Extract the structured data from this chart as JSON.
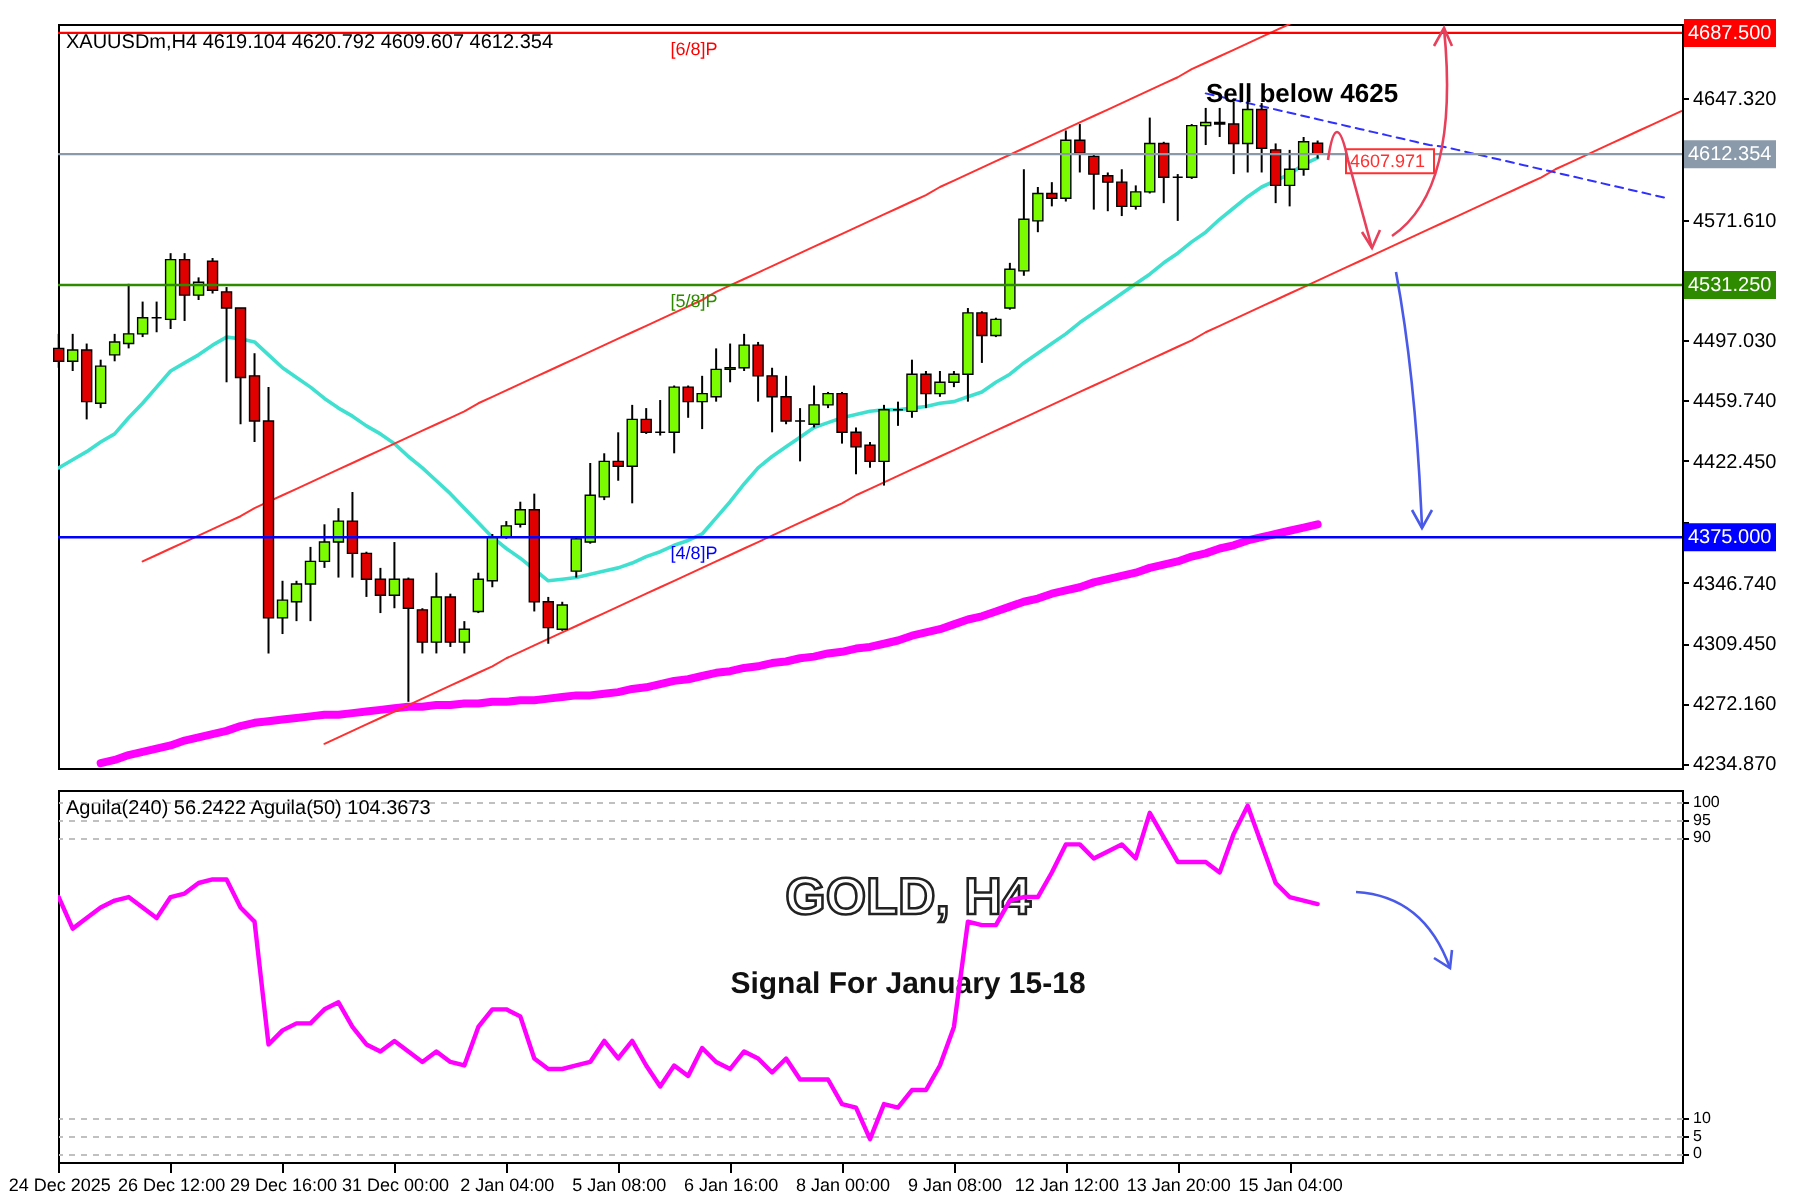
{
  "chart_data": [
    {
      "type": "candlestick",
      "title": "XAUUSDm,H4 4619.104 4620.792 4609.607 4612.354",
      "categories": [
        null,
        null,
        null,
        null,
        null,
        null,
        null,
        null,
        null,
        null,
        null,
        null,
        null,
        null,
        null,
        null,
        null,
        null,
        null,
        null,
        null,
        null,
        null,
        null,
        null,
        null,
        null,
        null,
        null,
        null,
        null,
        null,
        null,
        null,
        null,
        null,
        null,
        null,
        null,
        null,
        null,
        null,
        null,
        null,
        null,
        null,
        null,
        null,
        null,
        null,
        null,
        null,
        null,
        null,
        null,
        null,
        null,
        null,
        null,
        null,
        null,
        null,
        null,
        null,
        null,
        null,
        null,
        null,
        null,
        null,
        null,
        null,
        null,
        null,
        null,
        null,
        null,
        null,
        null,
        null,
        null,
        null,
        null,
        null,
        null,
        null,
        null,
        null,
        null,
        null,
        null,
        null,
        null,
        null,
        null,
        null,
        null,
        null,
        null,
        null,
        null,
        null,
        null,
        null,
        null,
        null,
        null,
        null,
        null,
        null,
        null,
        null,
        null,
        null,
        null,
        null,
        null
      ],
      "ohlc": [
        [
          4492,
          4501,
          4480,
          4484
        ],
        [
          4484,
          4501,
          4478,
          4491
        ],
        [
          4491,
          4495,
          4448,
          4459
        ],
        [
          4458,
          4485,
          4455,
          4481
        ],
        [
          4488,
          4501,
          4484,
          4496
        ],
        [
          4495,
          4532,
          4492,
          4501
        ],
        [
          4501,
          4521,
          4499,
          4511
        ],
        [
          4511,
          4521,
          4502,
          4511
        ],
        [
          4510,
          4551,
          4504,
          4547
        ],
        [
          4547,
          4551,
          4509,
          4525
        ],
        [
          4525,
          4536,
          4522,
          4533
        ],
        [
          4546,
          4548,
          4526,
          4528
        ],
        [
          4527,
          4530,
          4471,
          4517
        ],
        [
          4517,
          4517,
          4445,
          4474
        ],
        [
          4475,
          4489,
          4434,
          4447
        ],
        [
          4447,
          4468,
          4303,
          4325
        ],
        [
          4325,
          4348,
          4315,
          4336
        ],
        [
          4335,
          4348,
          4323,
          4346
        ],
        [
          4346,
          4369,
          4323,
          4360
        ],
        [
          4360,
          4383,
          4356,
          4372
        ],
        [
          4372,
          4393,
          4350,
          4385
        ],
        [
          4385,
          4403,
          4350,
          4365
        ],
        [
          4365,
          4366,
          4338,
          4349
        ],
        [
          4349,
          4356,
          4328,
          4339
        ],
        [
          4339,
          4372,
          4331,
          4349
        ],
        [
          4349,
          4350,
          4273,
          4331
        ],
        [
          4330,
          4331,
          4303,
          4310
        ],
        [
          4310,
          4353,
          4303,
          4338
        ],
        [
          4338,
          4340,
          4307,
          4310
        ],
        [
          4310,
          4323,
          4303,
          4318
        ],
        [
          4329,
          4353,
          4328,
          4349
        ],
        [
          4348,
          4377,
          4344,
          4375
        ],
        [
          4375,
          4385,
          4374,
          4382
        ],
        [
          4383,
          4397,
          4381,
          4392
        ],
        [
          4392,
          4402,
          4329,
          4335
        ],
        [
          4335,
          4338,
          4309,
          4319
        ],
        [
          4318,
          4335,
          4317,
          4333
        ],
        [
          4354,
          4375,
          4350,
          4374
        ],
        [
          4372,
          4421,
          4371,
          4401
        ],
        [
          4400,
          4427,
          4398,
          4422
        ],
        [
          4422,
          4440,
          4410,
          4419
        ],
        [
          4419,
          4457,
          4396,
          4448
        ],
        [
          4448,
          4455,
          4439,
          4440
        ],
        [
          4440,
          4460,
          4438,
          4440
        ],
        [
          4440,
          4469,
          4427,
          4468
        ],
        [
          4468,
          4469,
          4449,
          4459
        ],
        [
          4459,
          4475,
          4442,
          4464
        ],
        [
          4462,
          4492,
          4459,
          4479
        ],
        [
          4479,
          4495,
          4471,
          4480
        ],
        [
          4480,
          4501,
          4478,
          4494
        ],
        [
          4494,
          4496,
          4459,
          4475
        ],
        [
          4475,
          4480,
          4440,
          4462
        ],
        [
          4462,
          4475,
          4445,
          4447
        ],
        [
          4447,
          4455,
          4422,
          4447
        ],
        [
          4445,
          4469,
          4443,
          4457
        ],
        [
          4457,
          4465,
          4455,
          4464
        ],
        [
          4464,
          4465,
          4433,
          4440
        ],
        [
          4440,
          4443,
          4414,
          4431
        ],
        [
          4432,
          4434,
          4418,
          4422
        ],
        [
          4422,
          4457,
          4407,
          4454
        ],
        [
          4454,
          4459,
          4444,
          4454
        ],
        [
          4453,
          4485,
          4449,
          4476
        ],
        [
          4476,
          4478,
          4455,
          4464
        ],
        [
          4464,
          4478,
          4462,
          4471
        ],
        [
          4471,
          4478,
          4468,
          4476
        ],
        [
          4476,
          4517,
          4459,
          4514
        ],
        [
          4514,
          4515,
          4483,
          4500
        ],
        [
          4500,
          4511,
          4499,
          4510
        ],
        [
          4517,
          4545,
          4516,
          4541
        ],
        [
          4540,
          4603,
          4537,
          4572
        ],
        [
          4571,
          4592,
          4564,
          4588
        ],
        [
          4588,
          4595,
          4580,
          4585
        ],
        [
          4585,
          4627,
          4583,
          4621
        ],
        [
          4621,
          4631,
          4601,
          4613
        ],
        [
          4611,
          4613,
          4578,
          4600
        ],
        [
          4599,
          4601,
          4577,
          4595
        ],
        [
          4595,
          4603,
          4574,
          4580
        ],
        [
          4580,
          4593,
          4578,
          4589
        ],
        [
          4589,
          4635,
          4588,
          4619
        ],
        [
          4619,
          4620,
          4582,
          4598
        ],
        [
          4598,
          4600,
          4571,
          4598
        ],
        [
          4598,
          4631,
          4597,
          4630
        ],
        [
          4630,
          4641,
          4618,
          4632
        ],
        [
          4632,
          4641,
          4623,
          4631
        ],
        [
          4631,
          4645,
          4600,
          4619
        ],
        [
          4619,
          4645,
          4601,
          4640
        ],
        [
          4640,
          4644,
          4601,
          4616
        ],
        [
          4615,
          4619,
          4582,
          4593
        ],
        [
          4593,
          4615,
          4580,
          4603
        ],
        [
          4603,
          4623,
          4599,
          4620
        ],
        [
          4619.104,
          4620.792,
          4609.607,
          4612.354
        ],
        null,
        null,
        null,
        null,
        null,
        null,
        null,
        null,
        null,
        null,
        null,
        null,
        null,
        null,
        null,
        null,
        null,
        null,
        null,
        null,
        null,
        null,
        null,
        null,
        null,
        null
      ],
      "series": [
        {
          "type": "line",
          "color": "#40e0d0",
          "values": [
            4418,
            4423,
            4428,
            4434,
            4439,
            4449,
            4458,
            4468,
            4478,
            4483,
            4488,
            4494,
            4499,
            4498,
            4496,
            4488,
            4480,
            4474,
            4468,
            4461,
            4455,
            4450,
            4444,
            4439,
            4433,
            4425,
            4418,
            4410,
            4402,
            4393,
            4384,
            4375,
            4368,
            4362,
            4355,
            4348,
            4349,
            4350,
            4352,
            4354,
            4356,
            4359,
            4363,
            4366,
            4370,
            4373,
            4377,
            4387,
            4397,
            4408,
            4418,
            4425,
            4431,
            4437,
            4443,
            4446,
            4449,
            4451,
            4453,
            4454,
            4454,
            4455,
            4456,
            4458,
            4459,
            4462,
            4465,
            4471,
            4476,
            4483,
            4489,
            4495,
            4501,
            4508,
            4514,
            4520,
            4526,
            4532,
            4538,
            4545,
            4551,
            4558,
            4564,
            4572,
            4579,
            4586,
            4592,
            4596,
            4600,
            4606,
            4610,
            null,
            null,
            null,
            null,
            null,
            null,
            null,
            null,
            null,
            null,
            null,
            null,
            null,
            null,
            null,
            null,
            null,
            null,
            null,
            null,
            null,
            null,
            null,
            null,
            null,
            null
          ]
        },
        {
          "type": "line",
          "color": "#ff00ff",
          "values": [
            null,
            null,
            null,
            4235,
            4237,
            4240,
            4242,
            4244,
            4246,
            4249,
            4251,
            4253,
            4255,
            4258,
            4260,
            4261,
            4262,
            4263,
            4264,
            4265,
            4265,
            4266,
            4267,
            4268,
            4269,
            4270,
            4270,
            4271,
            4271,
            4272,
            4272,
            4273,
            4273,
            4274,
            4274,
            4275,
            4276,
            4277,
            4277,
            4278,
            4279,
            4281,
            4282,
            4284,
            4286,
            4287,
            4289,
            4291,
            4292,
            4294,
            4295,
            4297,
            4298,
            4300,
            4301,
            4303,
            4304,
            4306,
            4307,
            4309,
            4311,
            4314,
            4316,
            4318,
            4321,
            4324,
            4326,
            4329,
            4332,
            4335,
            4337,
            4340,
            4342,
            4344,
            4347,
            4349,
            4351,
            4353,
            4356,
            4358,
            4360,
            4363,
            4365,
            4368,
            4370,
            4373,
            4375,
            4377,
            4379,
            4381,
            4383,
            null,
            null,
            null,
            null,
            null,
            null,
            null,
            null,
            null,
            null,
            null,
            null,
            null,
            null,
            null,
            null,
            null,
            null,
            null,
            null,
            null,
            null,
            null,
            null,
            null,
            null
          ]
        },
        {
          "type": "line",
          "color": "#ff3030",
          "values": [
            null,
            null,
            null,
            null,
            null,
            null,
            4360,
            4364,
            4368,
            4372,
            4376,
            4380,
            4384,
            4388,
            4393,
            4397,
            4401,
            4405,
            4409,
            4413,
            4417,
            4421,
            4425,
            4429,
            4433,
            4437,
            4441,
            4445,
            4449,
            4453,
            4458,
            4462,
            4466,
            4470,
            4474,
            4478,
            4482,
            4486,
            4490,
            4494,
            4498,
            4502,
            4506,
            4510,
            4514,
            4518,
            4522,
            4527,
            4531,
            4535,
            4539,
            4543,
            4547,
            4551,
            4555,
            4559,
            4563,
            4567,
            4571,
            4575,
            4579,
            4583,
            4587,
            4592,
            4596,
            4600,
            4604,
            4608,
            4612,
            4616,
            4620,
            4624,
            4628,
            4632,
            4636,
            4640,
            4644,
            4648,
            4652,
            4656,
            4660,
            4665,
            4669,
            4673,
            4677,
            4681,
            4685,
            4689,
            4693,
            null,
            null,
            null,
            null,
            null,
            null,
            null,
            null,
            null,
            null,
            null,
            null,
            null,
            null,
            null,
            null,
            null,
            null,
            null,
            null,
            null,
            null,
            null,
            null,
            null,
            null,
            null,
            null
          ]
        },
        {
          "type": "line",
          "color": "#ff3030",
          "values": [
            null,
            null,
            null,
            null,
            null,
            null,
            null,
            null,
            null,
            null,
            null,
            null,
            null,
            null,
            null,
            null,
            null,
            null,
            null,
            4247,
            4251,
            4255,
            4259,
            4263,
            4267,
            4271,
            4275,
            4279,
            4283,
            4287,
            4291,
            4295,
            4300,
            4304,
            4308,
            4312,
            4316,
            4320,
            4324,
            4328,
            4332,
            4336,
            4340,
            4344,
            4348,
            4352,
            4356,
            4360,
            4364,
            4368,
            4372,
            4376,
            4380,
            4384,
            4388,
            4392,
            4396,
            4401,
            4405,
            4409,
            4413,
            4417,
            4421,
            4425,
            4429,
            4433,
            4437,
            4441,
            4445,
            4449,
            4453,
            4457,
            4461,
            4465,
            4469,
            4473,
            4477,
            4481,
            4485,
            4489,
            4493,
            4497,
            4502,
            4506,
            4510,
            4514,
            4518,
            4522,
            4526,
            4530,
            4534,
            4538,
            4542,
            4546,
            4550,
            4554,
            4558,
            4562,
            4566,
            4570,
            4574,
            4578,
            4582,
            4586,
            4590,
            4594,
            4598,
            4603,
            4607,
            4611,
            4615,
            4619,
            4623,
            4627,
            4631,
            4635,
            4639
          ]
        },
        {
          "type": "line",
          "color": "#3030ff",
          "line_style": "dashed",
          "values": [
            null,
            null,
            null,
            null,
            null,
            null,
            null,
            null,
            null,
            null,
            null,
            null,
            null,
            null,
            null,
            null,
            null,
            null,
            null,
            null,
            null,
            null,
            null,
            null,
            null,
            null,
            null,
            null,
            null,
            null,
            null,
            null,
            null,
            null,
            null,
            null,
            null,
            null,
            null,
            null,
            null,
            null,
            null,
            null,
            null,
            null,
            null,
            null,
            null,
            null,
            null,
            null,
            null,
            null,
            null,
            null,
            null,
            null,
            null,
            null,
            null,
            null,
            null,
            null,
            null,
            null,
            null,
            null,
            null,
            null,
            null,
            null,
            null,
            null,
            null,
            null,
            null,
            null,
            null,
            null,
            null,
            null,
            4650,
            4648,
            4646,
            4644,
            4642,
            4640,
            4638,
            4636,
            4634,
            4632,
            4630,
            4628,
            4626,
            4624,
            4622,
            4620,
            4618,
            4617,
            4615,
            4613,
            4611,
            4609,
            4607,
            4605,
            4603,
            4601,
            4599,
            4597,
            4595,
            4593,
            4591,
            4589,
            4587,
            4585,
            null
          ]
        }
      ],
      "ylim": [
        4232,
        4693
      ],
      "yticks": [
        {
          "value": 4234.87,
          "label": "4234.870"
        },
        {
          "value": 4272.16,
          "label": "4272.160"
        },
        {
          "value": 4309.45,
          "label": "4309.450"
        },
        {
          "value": 4346.74,
          "label": "4346.740"
        },
        {
          "value": 4384.03,
          "label": null
        },
        {
          "value": 4422.45,
          "label": "4422.450"
        },
        {
          "value": 4459.74,
          "label": "4459.740"
        },
        {
          "value": 4497.03,
          "label": "4497.030"
        },
        {
          "value": 4571.61,
          "label": "4571.610"
        },
        {
          "value": 4647.32,
          "label": "4647.320"
        }
      ],
      "tick_labels": "y",
      "ref_lines": [
        {
          "axis": "y",
          "value": 4687.5,
          "label": "4687.500",
          "color": "#ff0000"
        },
        {
          "axis": "y",
          "value": 4612.354,
          "label": "4612.354",
          "color": "#8a9aaa"
        },
        {
          "axis": "y",
          "value": 4531.25,
          "label": "4531.250",
          "color": "#2e8b00"
        },
        {
          "axis": "y",
          "value": 4375,
          "label": "4375.000",
          "color": "#0000ff"
        }
      ],
      "annotations": [
        {
          "text": "[6/8]P",
          "y": 4687.5
        },
        {
          "text": "[5/8]P",
          "y": 4531.25
        },
        {
          "text": "[4/8]P",
          "y": 4375
        },
        "Sell below 4625",
        {
          "text": "4607.971",
          "y": 4607.971
        }
      ]
    },
    {
      "type": "line",
      "title": "Aguila(240) 56.2422 Aguila(50) 104.3673",
      "categories": [
        "24 Dec 2025",
        null,
        null,
        null,
        null,
        null,
        null,
        null,
        "26 Dec 12:00",
        null,
        null,
        null,
        null,
        null,
        null,
        null,
        "29 Dec 16:00",
        null,
        null,
        null,
        null,
        null,
        null,
        null,
        "31 Dec 00:00",
        null,
        null,
        null,
        null,
        null,
        null,
        null,
        "2 Jan 04:00",
        null,
        null,
        null,
        null,
        null,
        null,
        null,
        "5 Jan 08:00",
        null,
        null,
        null,
        null,
        null,
        null,
        null,
        "6 Jan 16:00",
        null,
        null,
        null,
        null,
        null,
        null,
        null,
        "8 Jan 00:00",
        null,
        null,
        null,
        null,
        null,
        null,
        null,
        "9 Jan 08:00",
        null,
        null,
        null,
        null,
        null,
        null,
        null,
        "12 Jan 12:00",
        null,
        null,
        null,
        null,
        null,
        null,
        null,
        "13 Jan 20:00",
        null,
        null,
        null,
        null,
        null,
        null,
        null,
        "15 Jan 04:00",
        null,
        null,
        null,
        null,
        null,
        null,
        null,
        null,
        null,
        null,
        null,
        null,
        null,
        null,
        null,
        null,
        null,
        null,
        null,
        null,
        null,
        null,
        null,
        null,
        null,
        null,
        null,
        null
      ],
      "series": [
        {
          "color": "#ff00ff",
          "values": [
            73,
            64,
            67,
            70,
            72,
            73,
            70,
            67,
            73,
            74,
            77,
            78,
            78,
            70,
            66,
            31,
            35,
            37,
            37,
            41,
            43,
            36,
            31,
            29,
            32,
            29,
            26,
            29,
            26,
            25,
            36,
            41,
            41,
            39,
            27,
            24,
            24,
            25,
            26,
            32,
            27,
            32,
            25,
            19,
            25,
            22,
            30,
            26,
            24,
            29,
            27,
            23,
            27,
            21,
            21,
            21,
            14,
            13,
            4,
            14,
            13,
            18,
            18,
            25,
            36,
            66,
            65,
            65,
            72,
            73,
            73,
            80,
            88,
            88,
            84,
            86,
            88,
            84,
            97,
            90,
            83,
            83,
            83,
            80,
            91,
            99,
            88,
            77,
            73,
            72,
            71,
            null,
            null,
            null,
            null,
            null,
            null,
            null,
            null,
            null,
            null,
            null,
            null,
            null,
            null,
            null,
            null,
            null,
            null,
            null,
            null,
            null,
            null,
            null,
            null,
            null,
            null
          ]
        }
      ],
      "ylim": [
        -2.5,
        103.5
      ],
      "yticks": [
        0,
        5,
        10,
        90,
        95,
        100
      ],
      "grid": "y",
      "annotations": [
        "GOLD, H4",
        "Signal For January 15-18"
      ]
    }
  ]
}
